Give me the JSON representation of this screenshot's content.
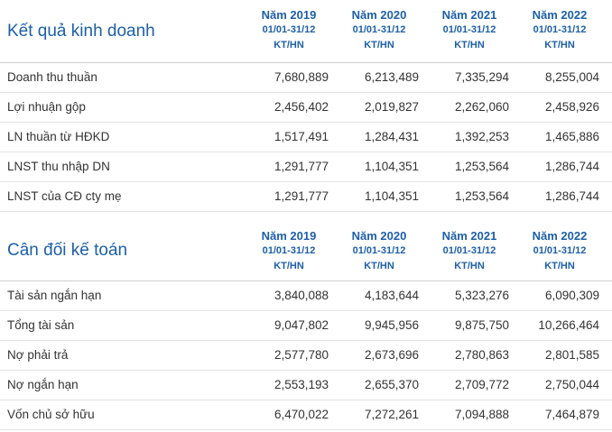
{
  "kqkd": {
    "title": "Kết quả kinh doanh",
    "columns": [
      {
        "year": "Năm 2019",
        "range": "01/01-31/12",
        "unit": "KT/HN"
      },
      {
        "year": "Năm 2020",
        "range": "01/01-31/12",
        "unit": "KT/HN"
      },
      {
        "year": "Năm 2021",
        "range": "01/01-31/12",
        "unit": "KT/HN"
      },
      {
        "year": "Năm 2022",
        "range": "01/01-31/12",
        "unit": "KT/HN"
      }
    ],
    "rows": [
      {
        "label": "Doanh thu thuần",
        "values": [
          "7,680,889",
          "6,213,489",
          "7,335,294",
          "8,255,004"
        ]
      },
      {
        "label": "Lợi nhuận gộp",
        "values": [
          "2,456,402",
          "2,019,827",
          "2,262,060",
          "2,458,926"
        ]
      },
      {
        "label": "LN thuần từ HĐKD",
        "values": [
          "1,517,491",
          "1,284,431",
          "1,392,253",
          "1,465,886"
        ]
      },
      {
        "label": "LNST thu nhập DN",
        "values": [
          "1,291,777",
          "1,104,351",
          "1,253,564",
          "1,286,744"
        ]
      },
      {
        "label": "LNST của CĐ cty mẹ",
        "values": [
          "1,291,777",
          "1,104,351",
          "1,253,564",
          "1,286,744"
        ]
      }
    ]
  },
  "cdkt": {
    "title": "Cân đối kế toán",
    "columns": [
      {
        "year": "Năm 2019",
        "range": "01/01-31/12",
        "unit": "KT/HN"
      },
      {
        "year": "Năm 2020",
        "range": "01/01-31/12",
        "unit": "KT/HN"
      },
      {
        "year": "Năm 2021",
        "range": "01/01-31/12",
        "unit": "KT/HN"
      },
      {
        "year": "Năm 2022",
        "range": "01/01-31/12",
        "unit": "KT/HN"
      }
    ],
    "rows": [
      {
        "label": "Tài sản ngắn hạn",
        "values": [
          "3,840,088",
          "4,183,644",
          "5,323,276",
          "6,090,309"
        ]
      },
      {
        "label": "Tổng tài sản",
        "values": [
          "9,047,802",
          "9,945,956",
          "9,875,750",
          "10,266,464"
        ]
      },
      {
        "label": "Nợ phải trả",
        "values": [
          "2,577,780",
          "2,673,696",
          "2,780,863",
          "2,801,585"
        ]
      },
      {
        "label": "Nợ ngắn hạn",
        "values": [
          "2,553,193",
          "2,655,370",
          "2,709,772",
          "2,750,044"
        ]
      },
      {
        "label": "Vốn chủ sở hữu",
        "values": [
          "6,470,022",
          "7,272,261",
          "7,094,888",
          "7,464,879"
        ]
      }
    ]
  }
}
